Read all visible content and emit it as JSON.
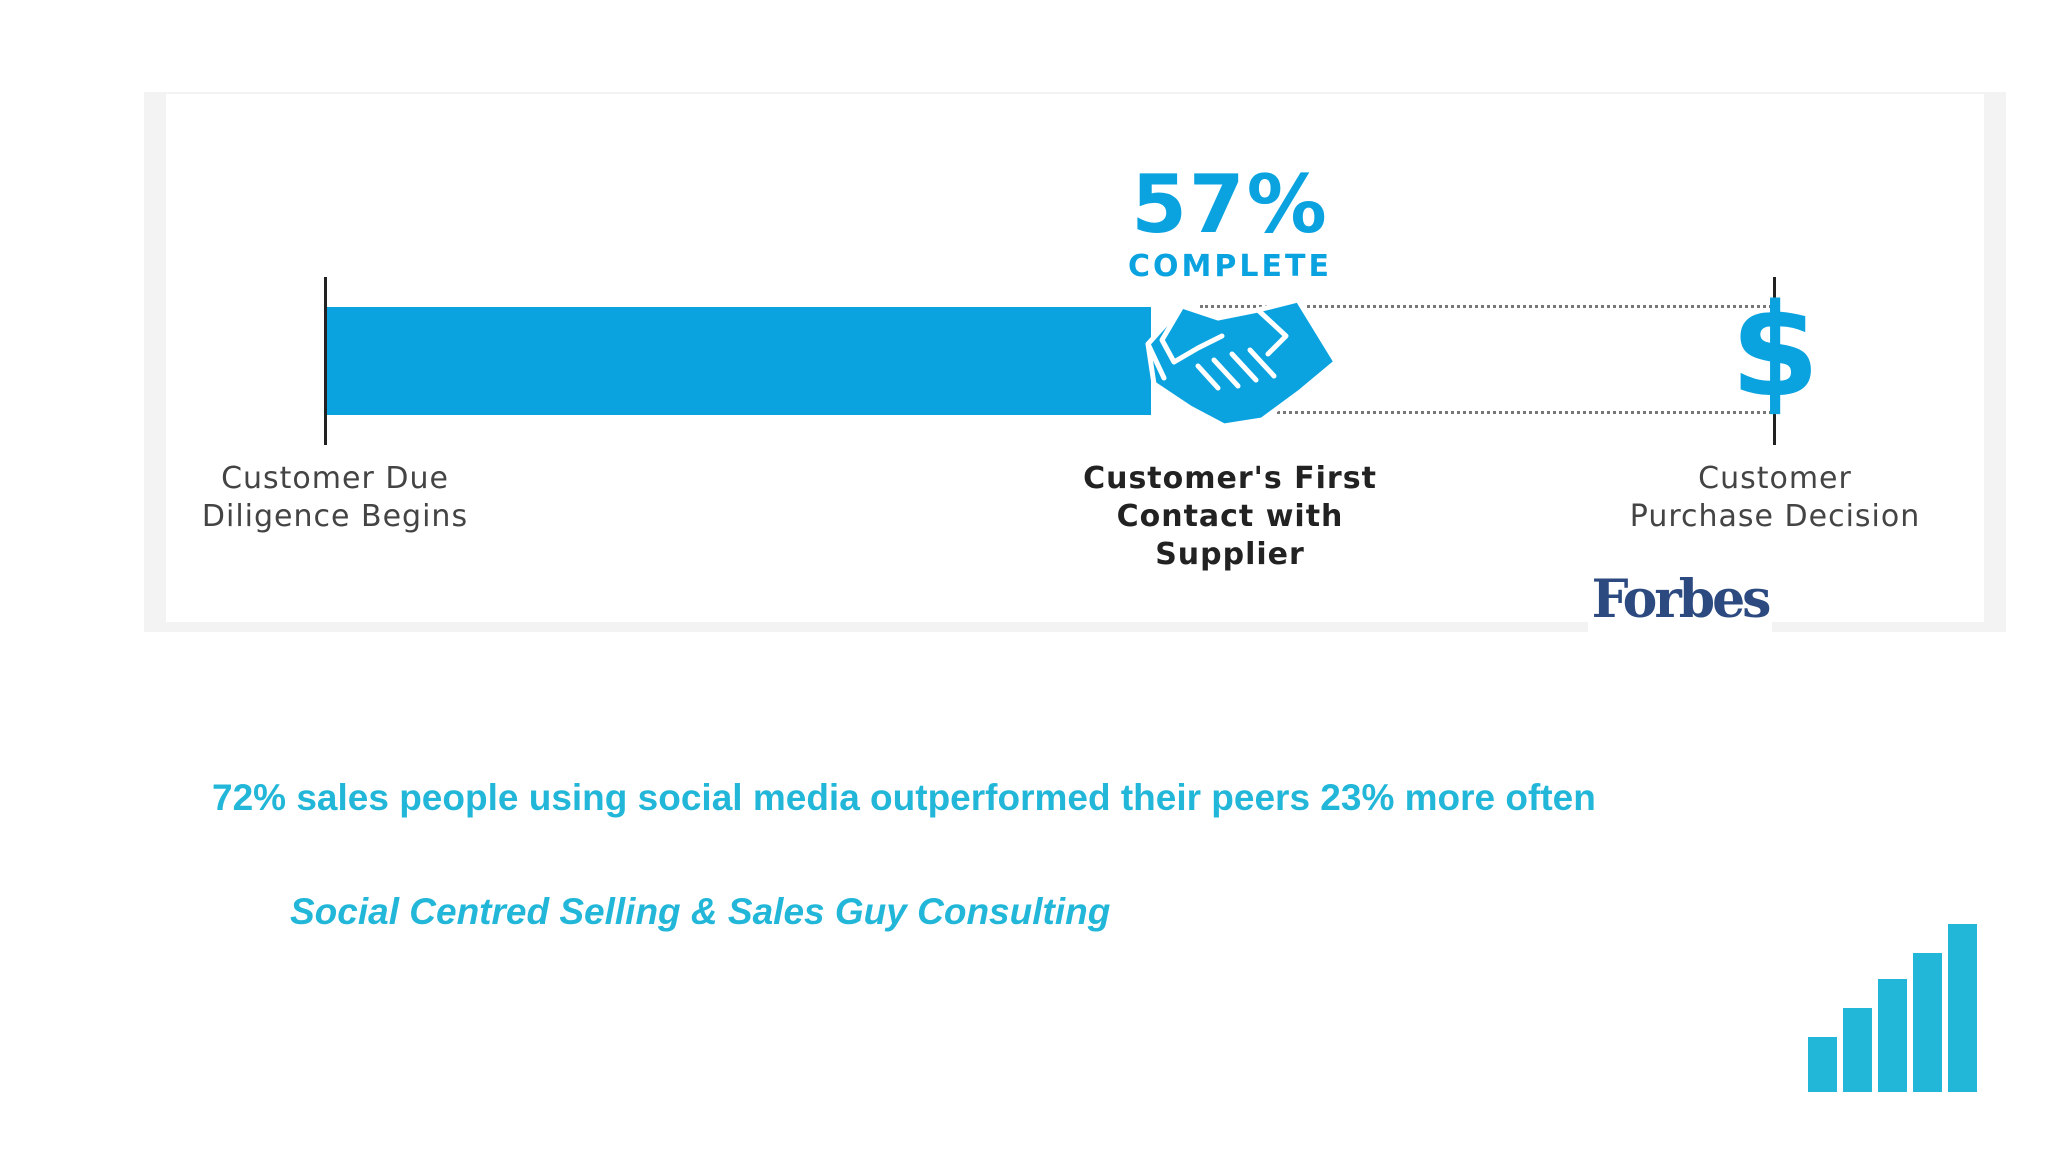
{
  "infographic": {
    "progress_percent": 57,
    "headline": "57%",
    "headline_sub": "COMPLETE",
    "accent_color": "#0aa3e0",
    "purchase_icon": "dollar-icon",
    "purchase_symbol": "$",
    "contact_icon": "handshake-icon",
    "milestones": {
      "start": "Customer Due\nDiligence Begins",
      "contact": "Customer's First\nContact with\nSupplier",
      "decision": "Customer\nPurchase Decision"
    },
    "source_logo": "Forbes"
  },
  "stat_line": "72% sales people using social media outperformed their peers 23% more often",
  "source_line": "Social Centred Selling & Sales Guy Consulting",
  "corner_logo": {
    "icon": "bar-chart-icon",
    "color": "#22b7d8",
    "bar_levels": [
      0.33,
      0.5,
      0.67,
      0.83,
      1.0
    ]
  }
}
